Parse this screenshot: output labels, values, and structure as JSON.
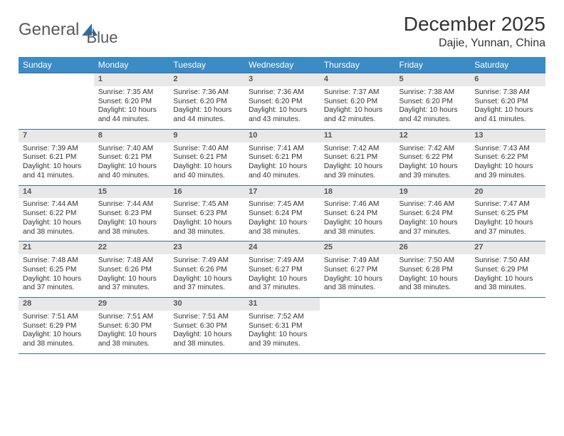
{
  "logo": {
    "text1": "General",
    "text2": "Blue"
  },
  "header": {
    "title": "December 2025",
    "location": "Dajie, Yunnan, China"
  },
  "colors": {
    "header_bg": "#3b8bc6",
    "header_text": "#ffffff",
    "daynum_bg": "#e8e8e8",
    "rule": "#3b6fa0",
    "body_text": "#333333"
  },
  "typography": {
    "title_fontsize_pt": 21,
    "location_fontsize_pt": 12,
    "dayheader_fontsize_pt": 9,
    "cell_fontsize_pt": 7.5
  },
  "calendar": {
    "type": "table",
    "columns": [
      "Sunday",
      "Monday",
      "Tuesday",
      "Wednesday",
      "Thursday",
      "Friday",
      "Saturday"
    ],
    "weeks": [
      [
        null,
        {
          "num": "1",
          "sunrise": "7:35 AM",
          "sunset": "6:20 PM",
          "daylight": "10 hours and 44 minutes."
        },
        {
          "num": "2",
          "sunrise": "7:36 AM",
          "sunset": "6:20 PM",
          "daylight": "10 hours and 44 minutes."
        },
        {
          "num": "3",
          "sunrise": "7:36 AM",
          "sunset": "6:20 PM",
          "daylight": "10 hours and 43 minutes."
        },
        {
          "num": "4",
          "sunrise": "7:37 AM",
          "sunset": "6:20 PM",
          "daylight": "10 hours and 42 minutes."
        },
        {
          "num": "5",
          "sunrise": "7:38 AM",
          "sunset": "6:20 PM",
          "daylight": "10 hours and 42 minutes."
        },
        {
          "num": "6",
          "sunrise": "7:38 AM",
          "sunset": "6:20 PM",
          "daylight": "10 hours and 41 minutes."
        }
      ],
      [
        {
          "num": "7",
          "sunrise": "7:39 AM",
          "sunset": "6:21 PM",
          "daylight": "10 hours and 41 minutes."
        },
        {
          "num": "8",
          "sunrise": "7:40 AM",
          "sunset": "6:21 PM",
          "daylight": "10 hours and 40 minutes."
        },
        {
          "num": "9",
          "sunrise": "7:40 AM",
          "sunset": "6:21 PM",
          "daylight": "10 hours and 40 minutes."
        },
        {
          "num": "10",
          "sunrise": "7:41 AM",
          "sunset": "6:21 PM",
          "daylight": "10 hours and 40 minutes."
        },
        {
          "num": "11",
          "sunrise": "7:42 AM",
          "sunset": "6:21 PM",
          "daylight": "10 hours and 39 minutes."
        },
        {
          "num": "12",
          "sunrise": "7:42 AM",
          "sunset": "6:22 PM",
          "daylight": "10 hours and 39 minutes."
        },
        {
          "num": "13",
          "sunrise": "7:43 AM",
          "sunset": "6:22 PM",
          "daylight": "10 hours and 39 minutes."
        }
      ],
      [
        {
          "num": "14",
          "sunrise": "7:44 AM",
          "sunset": "6:22 PM",
          "daylight": "10 hours and 38 minutes."
        },
        {
          "num": "15",
          "sunrise": "7:44 AM",
          "sunset": "6:23 PM",
          "daylight": "10 hours and 38 minutes."
        },
        {
          "num": "16",
          "sunrise": "7:45 AM",
          "sunset": "6:23 PM",
          "daylight": "10 hours and 38 minutes."
        },
        {
          "num": "17",
          "sunrise": "7:45 AM",
          "sunset": "6:24 PM",
          "daylight": "10 hours and 38 minutes."
        },
        {
          "num": "18",
          "sunrise": "7:46 AM",
          "sunset": "6:24 PM",
          "daylight": "10 hours and 38 minutes."
        },
        {
          "num": "19",
          "sunrise": "7:46 AM",
          "sunset": "6:24 PM",
          "daylight": "10 hours and 37 minutes."
        },
        {
          "num": "20",
          "sunrise": "7:47 AM",
          "sunset": "6:25 PM",
          "daylight": "10 hours and 37 minutes."
        }
      ],
      [
        {
          "num": "21",
          "sunrise": "7:48 AM",
          "sunset": "6:25 PM",
          "daylight": "10 hours and 37 minutes."
        },
        {
          "num": "22",
          "sunrise": "7:48 AM",
          "sunset": "6:26 PM",
          "daylight": "10 hours and 37 minutes."
        },
        {
          "num": "23",
          "sunrise": "7:49 AM",
          "sunset": "6:26 PM",
          "daylight": "10 hours and 37 minutes."
        },
        {
          "num": "24",
          "sunrise": "7:49 AM",
          "sunset": "6:27 PM",
          "daylight": "10 hours and 37 minutes."
        },
        {
          "num": "25",
          "sunrise": "7:49 AM",
          "sunset": "6:27 PM",
          "daylight": "10 hours and 38 minutes."
        },
        {
          "num": "26",
          "sunrise": "7:50 AM",
          "sunset": "6:28 PM",
          "daylight": "10 hours and 38 minutes."
        },
        {
          "num": "27",
          "sunrise": "7:50 AM",
          "sunset": "6:29 PM",
          "daylight": "10 hours and 38 minutes."
        }
      ],
      [
        {
          "num": "28",
          "sunrise": "7:51 AM",
          "sunset": "6:29 PM",
          "daylight": "10 hours and 38 minutes."
        },
        {
          "num": "29",
          "sunrise": "7:51 AM",
          "sunset": "6:30 PM",
          "daylight": "10 hours and 38 minutes."
        },
        {
          "num": "30",
          "sunrise": "7:51 AM",
          "sunset": "6:30 PM",
          "daylight": "10 hours and 38 minutes."
        },
        {
          "num": "31",
          "sunrise": "7:52 AM",
          "sunset": "6:31 PM",
          "daylight": "10 hours and 39 minutes."
        },
        null,
        null,
        null
      ]
    ],
    "labels": {
      "sunrise": "Sunrise:",
      "sunset": "Sunset:",
      "daylight": "Daylight:"
    }
  }
}
